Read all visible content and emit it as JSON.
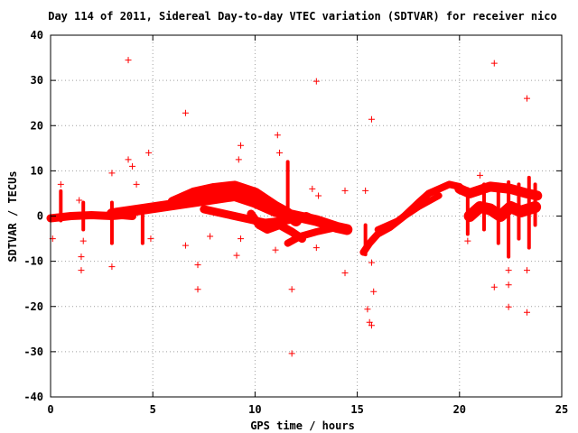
{
  "chart_data": {
    "type": "scatter",
    "title": "Day 114 of 2011, Sidereal Day-to-day VTEC variation (SDTVAR) for receiver nico",
    "xlabel": "GPS time / hours",
    "ylabel": "SDTVAR / TECUs",
    "xlim": [
      0,
      25
    ],
    "ylim": [
      -40,
      40
    ],
    "xticks": [
      "0",
      "5",
      "10",
      "15",
      "20",
      "25"
    ],
    "yticks": [
      "40",
      "30",
      "20",
      "10",
      "0",
      "-10",
      "-20",
      "-30",
      "-40"
    ],
    "grid": true,
    "marker": "+",
    "series_color": "#ff0000",
    "outliers": [
      {
        "x": 3.8,
        "y": 34.5
      },
      {
        "x": 21.7,
        "y": 33.8
      },
      {
        "x": 13.0,
        "y": 29.8
      },
      {
        "x": 23.3,
        "y": 26.0
      },
      {
        "x": 6.6,
        "y": 22.8
      },
      {
        "x": 15.7,
        "y": 21.4
      },
      {
        "x": 11.1,
        "y": 17.9
      },
      {
        "x": 9.3,
        "y": 15.6
      },
      {
        "x": 4.8,
        "y": 14.0
      },
      {
        "x": 11.2,
        "y": 14.0
      },
      {
        "x": 3.8,
        "y": 12.5
      },
      {
        "x": 9.2,
        "y": 12.5
      },
      {
        "x": 4.0,
        "y": 11.0
      },
      {
        "x": 3.0,
        "y": 9.5
      },
      {
        "x": 21.0,
        "y": 9.0
      },
      {
        "x": 0.5,
        "y": 7.0
      },
      {
        "x": 4.2,
        "y": 7.0
      },
      {
        "x": 15.4,
        "y": 5.6
      },
      {
        "x": 14.4,
        "y": 5.6
      },
      {
        "x": 12.8,
        "y": 6.0
      },
      {
        "x": 13.1,
        "y": 4.5
      },
      {
        "x": 1.4,
        "y": 3.5
      },
      {
        "x": 0.1,
        "y": -5.0
      },
      {
        "x": 1.6,
        "y": -5.5
      },
      {
        "x": 4.9,
        "y": -5.0
      },
      {
        "x": 20.4,
        "y": -5.5
      },
      {
        "x": 6.6,
        "y": -6.5
      },
      {
        "x": 9.3,
        "y": -5.0
      },
      {
        "x": 7.8,
        "y": -4.5
      },
      {
        "x": 11.0,
        "y": -7.5
      },
      {
        "x": 13.0,
        "y": -7.0
      },
      {
        "x": 1.5,
        "y": -9.0
      },
      {
        "x": 9.1,
        "y": -8.7
      },
      {
        "x": 15.7,
        "y": -10.3
      },
      {
        "x": 3.0,
        "y": -11.2
      },
      {
        "x": 7.2,
        "y": -10.8
      },
      {
        "x": 1.5,
        "y": -12.0
      },
      {
        "x": 14.4,
        "y": -12.6
      },
      {
        "x": 22.4,
        "y": -12.0
      },
      {
        "x": 23.3,
        "y": -12.0
      },
      {
        "x": 21.7,
        "y": -15.7
      },
      {
        "x": 7.2,
        "y": -16.2
      },
      {
        "x": 11.8,
        "y": -16.2
      },
      {
        "x": 22.4,
        "y": -15.2
      },
      {
        "x": 15.8,
        "y": -16.7
      },
      {
        "x": 15.5,
        "y": -20.6
      },
      {
        "x": 22.4,
        "y": -20.1
      },
      {
        "x": 23.3,
        "y": -21.3
      },
      {
        "x": 15.6,
        "y": -23.5
      },
      {
        "x": 15.7,
        "y": -24.2
      },
      {
        "x": 11.8,
        "y": -30.4
      }
    ],
    "dense_tracks": [
      {
        "x": [
          0.0,
          1.0,
          2.0,
          3.0,
          3.5,
          4.0
        ],
        "y": [
          -0.5,
          0.0,
          0.2,
          0.0,
          0.2,
          0.0
        ],
        "spread": 1.8
      },
      {
        "x": [
          3.0,
          4.5,
          6.0,
          7.5,
          9.0,
          10.0,
          11.0,
          12.0,
          13.0,
          14.0,
          14.5
        ],
        "y": [
          0.5,
          1.5,
          2.5,
          3.5,
          4.5,
          3.0,
          1.0,
          0.0,
          -1.0,
          -2.5,
          -3.0
        ],
        "spread": 2.4
      },
      {
        "x": [
          6.0,
          7.0,
          8.0,
          9.0,
          10.0,
          11.0,
          11.6,
          12.0
        ],
        "y": [
          3.0,
          5.0,
          6.0,
          6.5,
          5.0,
          2.0,
          0.5,
          -1.0
        ],
        "spread": 2.6
      },
      {
        "x": [
          7.5,
          8.5,
          9.5,
          10.5,
          11.5,
          12.5,
          13.0
        ],
        "y": [
          1.5,
          0.5,
          -0.5,
          -1.5,
          -1.0,
          0.0,
          -1.0
        ],
        "spread": 1.8
      },
      {
        "x": [
          9.8,
          10.2,
          10.6,
          11.2,
          11.8,
          12.3
        ],
        "y": [
          0.5,
          -2.0,
          -3.0,
          -2.0,
          -3.5,
          -5.0
        ],
        "spread": 1.8
      },
      {
        "x": [
          11.6,
          12.2,
          13.0,
          14.0,
          14.5
        ],
        "y": [
          -6.0,
          -4.5,
          -3.5,
          -2.5,
          -3.0
        ],
        "spread": 1.6
      },
      {
        "x": [
          15.3,
          15.6,
          16.0,
          16.6,
          17.3,
          18.0,
          18.5,
          19.0,
          19.5,
          20.0
        ],
        "y": [
          -8.0,
          -6.0,
          -4.0,
          -2.5,
          0.0,
          3.0,
          5.0,
          6.0,
          7.0,
          6.5
        ],
        "spread": 1.6
      },
      {
        "x": [
          16.0,
          17.0,
          18.0,
          19.0
        ],
        "y": [
          -3.0,
          -1.0,
          2.0,
          4.5
        ],
        "spread": 1.4
      },
      {
        "x": [
          20.0,
          20.5,
          21.5,
          22.5,
          23.3,
          23.8
        ],
        "y": [
          6.0,
          5.0,
          6.5,
          6.0,
          5.0,
          4.5
        ],
        "spread": 2.2
      },
      {
        "x": [
          20.5,
          21.0,
          21.5,
          22.0,
          22.5,
          23.0,
          23.7
        ],
        "y": [
          0.0,
          2.0,
          1.5,
          0.0,
          2.0,
          1.0,
          2.0
        ],
        "spread": 2.6
      }
    ],
    "vertical_spikes": [
      {
        "x": 0.5,
        "y_from": -1.0,
        "y_to": 5.5
      },
      {
        "x": 1.6,
        "y_from": -3.0,
        "y_to": 3.0
      },
      {
        "x": 3.0,
        "y_from": -6.0,
        "y_to": 3.0
      },
      {
        "x": 4.5,
        "y_from": -6.0,
        "y_to": 2.0
      },
      {
        "x": 11.6,
        "y_from": -1.0,
        "y_to": 12.0
      },
      {
        "x": 15.4,
        "y_from": -8.5,
        "y_to": -2.0
      },
      {
        "x": 20.4,
        "y_from": -4.0,
        "y_to": 6.0
      },
      {
        "x": 21.2,
        "y_from": -3.0,
        "y_to": 7.0
      },
      {
        "x": 21.9,
        "y_from": -6.0,
        "y_to": 7.0
      },
      {
        "x": 22.4,
        "y_from": -9.0,
        "y_to": 7.5
      },
      {
        "x": 22.9,
        "y_from": -5.0,
        "y_to": 7.0
      },
      {
        "x": 23.4,
        "y_from": -7.0,
        "y_to": 8.5
      },
      {
        "x": 23.7,
        "y_from": -2.0,
        "y_to": 7.0
      }
    ]
  }
}
